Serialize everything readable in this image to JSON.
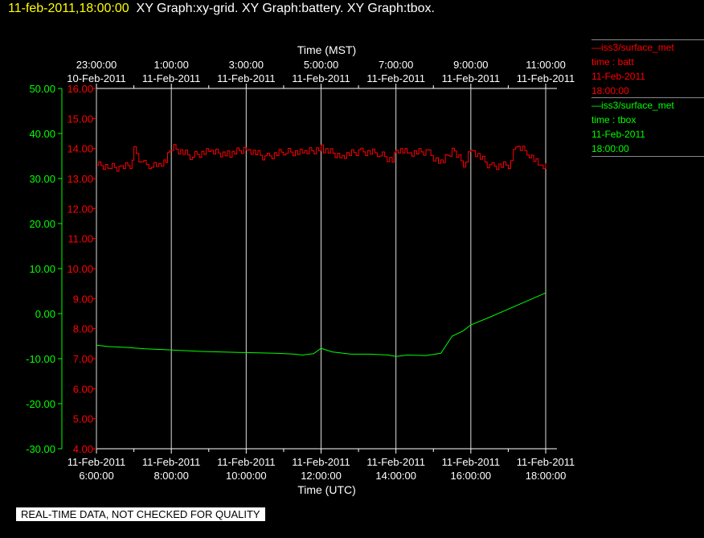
{
  "header": {
    "timestamp": "11-feb-2011,18:00:00",
    "titles": "XY Graph:xy-grid.  XY Graph:battery.  XY Graph:tbox."
  },
  "legend": [
    {
      "dataset": "iss3/surface_met",
      "label": "time : batt",
      "date": "11-Feb-2011",
      "time": "18:00:00",
      "color": "#ff0000"
    },
    {
      "dataset": "iss3/surface_met",
      "label": "time : tbox",
      "date": "11-Feb-2011",
      "time": "18:00:00",
      "color": "#00ff00"
    }
  ],
  "disclaimer": "REAL-TIME DATA, NOT CHECKED FOR QUALITY",
  "chart_data": {
    "type": "line",
    "top_axis": {
      "label": "Time (MST)",
      "ticks": [
        {
          "time": "23:00:00",
          "date": "10-Feb-2011"
        },
        {
          "time": "1:00:00",
          "date": "11-Feb-2011"
        },
        {
          "time": "3:00:00",
          "date": "11-Feb-2011"
        },
        {
          "time": "5:00:00",
          "date": "11-Feb-2011"
        },
        {
          "time": "7:00:00",
          "date": "11-Feb-2011"
        },
        {
          "time": "9:00:00",
          "date": "11-Feb-2011"
        },
        {
          "time": "11:00:00",
          "date": "11-Feb-2011"
        }
      ]
    },
    "bottom_axis": {
      "label": "Time (UTC)",
      "xlim": [
        6.0,
        18.3
      ],
      "ticks": [
        {
          "value": 6,
          "date": "11-Feb-2011",
          "time": "6:00:00"
        },
        {
          "value": 8,
          "date": "11-Feb-2011",
          "time": "8:00:00"
        },
        {
          "value": 10,
          "date": "11-Feb-2011",
          "time": "10:00:00"
        },
        {
          "value": 12,
          "date": "11-Feb-2011",
          "time": "12:00:00"
        },
        {
          "value": 14,
          "date": "11-Feb-2011",
          "time": "14:00:00"
        },
        {
          "value": 16,
          "date": "11-Feb-2011",
          "time": "16:00:00"
        },
        {
          "value": 18,
          "date": "11-Feb-2011",
          "time": "18:00:00"
        }
      ]
    },
    "left_axis": {
      "color": "#00ff00",
      "ylim": [
        -30,
        50
      ],
      "ticks": [
        "50.00",
        "40.00",
        "30.00",
        "20.00",
        "10.00",
        "0.00",
        "-10.00",
        "-20.00",
        "-30.00"
      ]
    },
    "right_axis": {
      "color": "#ff0000",
      "ylim": [
        4,
        16
      ],
      "ticks": [
        "16.00",
        "15.00",
        "14.00",
        "13.00",
        "12.00",
        "11.00",
        "10.00",
        "9.00",
        "8.00",
        "7.00",
        "6.00",
        "5.00",
        "4.00"
      ]
    },
    "grid": "vertical lines at bottom-axis ticks",
    "series": [
      {
        "key": "batt",
        "color": "#ff0000",
        "axis": "right",
        "x": [
          6.0,
          6.3,
          6.6,
          6.9,
          7.0,
          7.2,
          7.4,
          7.6,
          7.8,
          7.9,
          8.0,
          8.5,
          9.0,
          9.5,
          10.0,
          10.5,
          11.0,
          11.5,
          12.0,
          12.5,
          13.0,
          13.5,
          13.9,
          14.0,
          14.3,
          14.8,
          15.2,
          15.5,
          15.8,
          16.0,
          16.5,
          17.0,
          17.2,
          17.5,
          17.8,
          18.0
        ],
        "y": [
          13.45,
          13.4,
          13.35,
          13.45,
          14.0,
          13.5,
          13.45,
          13.4,
          13.5,
          13.8,
          14.05,
          13.75,
          13.9,
          13.8,
          14.0,
          13.7,
          13.9,
          13.85,
          14.0,
          13.75,
          13.9,
          13.85,
          13.6,
          14.0,
          13.85,
          13.9,
          13.5,
          13.95,
          13.5,
          14.0,
          13.4,
          13.45,
          14.05,
          13.9,
          13.45,
          13.45
        ]
      },
      {
        "key": "tbox",
        "color": "#00ff00",
        "axis": "left",
        "x": [
          6.0,
          6.3,
          6.8,
          7.3,
          7.8,
          8.3,
          8.8,
          9.3,
          9.8,
          10.3,
          10.8,
          11.3,
          11.5,
          11.8,
          12.0,
          12.3,
          12.8,
          13.3,
          13.8,
          14.0,
          14.3,
          14.8,
          15.2,
          15.5,
          15.8,
          16.0,
          16.5,
          17.0,
          17.5,
          18.0
        ],
        "y": [
          -7.0,
          -7.3,
          -7.5,
          -7.8,
          -8.0,
          -8.2,
          -8.4,
          -8.5,
          -8.6,
          -8.7,
          -8.8,
          -9.0,
          -9.2,
          -8.9,
          -7.7,
          -8.5,
          -9.0,
          -9.0,
          -9.2,
          -9.5,
          -9.2,
          -9.3,
          -8.8,
          -5.0,
          -3.8,
          -2.5,
          -0.8,
          1.0,
          2.8,
          4.6
        ]
      }
    ]
  }
}
